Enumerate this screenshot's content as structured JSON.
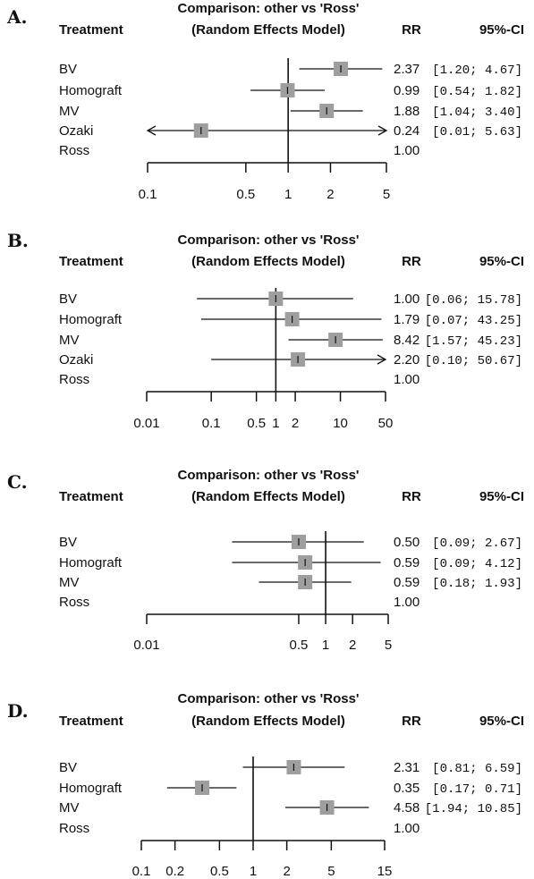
{
  "chart_data": [
    {
      "type": "forest",
      "panel_label": "A.",
      "title": "Comparison: other vs 'Ross'",
      "subtitle": "(Random Effects Model)",
      "column_headers": {
        "treatment": "Treatment",
        "rr": "RR",
        "ci": "95%-CI"
      },
      "scale": "log",
      "xlim": [
        0.1,
        5
      ],
      "ticks": [
        0.1,
        0.5,
        1,
        2,
        5
      ],
      "tick_labels": [
        "0.1",
        "0.5",
        "1",
        "2",
        "5"
      ],
      "rows": [
        {
          "label": "BV",
          "rr": 2.37,
          "lo": 1.2,
          "hi": 4.67,
          "rr_text": "2.37",
          "ci_text": "[1.20; 4.67]"
        },
        {
          "label": "Homograft",
          "rr": 0.99,
          "lo": 0.54,
          "hi": 1.82,
          "rr_text": "0.99",
          "ci_text": "[0.54; 1.82]"
        },
        {
          "label": "MV",
          "rr": 1.88,
          "lo": 1.04,
          "hi": 3.4,
          "rr_text": "1.88",
          "ci_text": "[1.04; 3.40]"
        },
        {
          "label": "Ozaki",
          "rr": 0.24,
          "lo": 0.01,
          "hi": 5.63,
          "rr_text": "0.24",
          "ci_text": "[0.01; 5.63]"
        },
        {
          "label": "Ross",
          "rr": 1,
          "rr_text": "1.00",
          "ci_text": "",
          "reference": true
        }
      ]
    },
    {
      "type": "forest",
      "panel_label": "B.",
      "title": "Comparison: other vs 'Ross'",
      "subtitle": "(Random Effects Model)",
      "column_headers": {
        "treatment": "Treatment",
        "rr": "RR",
        "ci": "95%-CI"
      },
      "scale": "log",
      "xlim": [
        0.01,
        50
      ],
      "ticks": [
        0.01,
        0.1,
        0.5,
        1,
        2,
        10,
        50
      ],
      "tick_labels": [
        "0.01",
        "0.1",
        "0.5",
        "1",
        "2",
        "10",
        "50"
      ],
      "rows": [
        {
          "label": "BV",
          "rr": 1.0,
          "lo": 0.06,
          "hi": 15.78,
          "rr_text": "1.00",
          "ci_text": "[0.06; 15.78]"
        },
        {
          "label": "Homograft",
          "rr": 1.79,
          "lo": 0.07,
          "hi": 43.25,
          "rr_text": "1.79",
          "ci_text": "[0.07; 43.25]"
        },
        {
          "label": "MV",
          "rr": 8.42,
          "lo": 1.57,
          "hi": 45.23,
          "rr_text": "8.42",
          "ci_text": "[1.57; 45.23]"
        },
        {
          "label": "Ozaki",
          "rr": 2.2,
          "lo": 0.1,
          "hi": 50.67,
          "rr_text": "2.20",
          "ci_text": "[0.10; 50.67]"
        },
        {
          "label": "Ross",
          "rr": 1,
          "rr_text": "1.00",
          "ci_text": "",
          "reference": true
        }
      ]
    },
    {
      "type": "forest",
      "panel_label": "C.",
      "title": "Comparison: other vs 'Ross'",
      "subtitle": "(Random Effects Model)",
      "column_headers": {
        "treatment": "Treatment",
        "rr": "RR",
        "ci": "95%-CI"
      },
      "scale": "log",
      "xlim": [
        0.01,
        5
      ],
      "ticks": [
        0.01,
        0.5,
        1,
        2,
        5
      ],
      "tick_labels": [
        "0.01",
        "0.5",
        "1",
        "2",
        "5"
      ],
      "rows": [
        {
          "label": "BV",
          "rr": 0.5,
          "lo": 0.09,
          "hi": 2.67,
          "rr_text": "0.50",
          "ci_text": "[0.09; 2.67]"
        },
        {
          "label": "Homograft",
          "rr": 0.59,
          "lo": 0.09,
          "hi": 4.12,
          "rr_text": "0.59",
          "ci_text": "[0.09; 4.12]"
        },
        {
          "label": "MV",
          "rr": 0.59,
          "lo": 0.18,
          "hi": 1.93,
          "rr_text": "0.59",
          "ci_text": "[0.18; 1.93]"
        },
        {
          "label": "Ross",
          "rr": 1,
          "rr_text": "1.00",
          "ci_text": "",
          "reference": true
        }
      ]
    },
    {
      "type": "forest",
      "panel_label": "D.",
      "title": "Comparison: other vs 'Ross'",
      "subtitle": "(Random Effects Model)",
      "column_headers": {
        "treatment": "Treatment",
        "rr": "RR",
        "ci": "95%-CI"
      },
      "scale": "log",
      "xlim": [
        0.1,
        15
      ],
      "ticks": [
        0.1,
        0.2,
        0.5,
        1,
        2,
        5,
        15
      ],
      "tick_labels": [
        "0.1",
        "0.2",
        "0.5",
        "1",
        "2",
        "5",
        "15"
      ],
      "rows": [
        {
          "label": "BV",
          "rr": 2.31,
          "lo": 0.81,
          "hi": 6.59,
          "rr_text": "2.31",
          "ci_text": "[0.81; 6.59]"
        },
        {
          "label": "Homograft",
          "rr": 0.35,
          "lo": 0.17,
          "hi": 0.71,
          "rr_text": "0.35",
          "ci_text": "[0.17; 0.71]"
        },
        {
          "label": "MV",
          "rr": 4.58,
          "lo": 1.94,
          "hi": 10.85,
          "rr_text": "4.58",
          "ci_text": "[1.94; 10.85]"
        },
        {
          "label": "Ross",
          "rr": 1,
          "rr_text": "1.00",
          "ci_text": "",
          "reference": true
        }
      ]
    }
  ],
  "colors": {
    "marker": "#9e9e9e",
    "line": "#111111",
    "text": "#111111"
  }
}
